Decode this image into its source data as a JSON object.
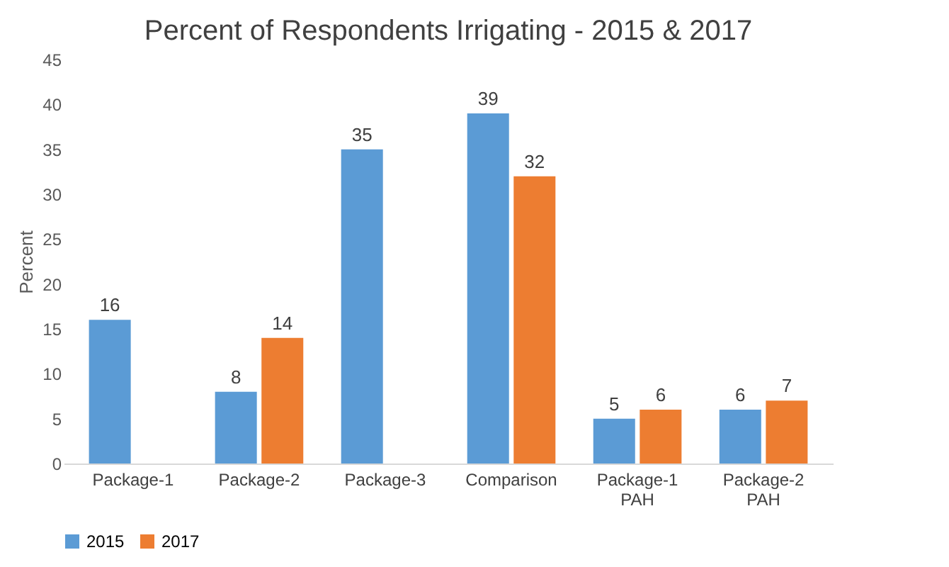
{
  "chart_data": {
    "type": "bar",
    "title": "Percent of Respondents Irrigating - 2015 & 2017",
    "ylabel": "Percent",
    "categories": [
      "Package-1",
      "Package-2",
      "Package-3",
      "Comparison",
      "Package-1 PAH",
      "Package-2 PAH"
    ],
    "series": [
      {
        "name": "2015",
        "color": "#5b9bd5",
        "values": [
          16,
          8,
          35,
          39,
          5,
          6
        ]
      },
      {
        "name": "2017",
        "color": "#ed7d31",
        "values": [
          null,
          14,
          null,
          32,
          6,
          7
        ]
      }
    ],
    "ylim": [
      0,
      45
    ],
    "yticks": [
      0,
      5,
      10,
      15,
      20,
      25,
      30,
      35,
      40,
      45
    ],
    "data_labels": true,
    "legend": "bottom",
    "grid": false
  }
}
